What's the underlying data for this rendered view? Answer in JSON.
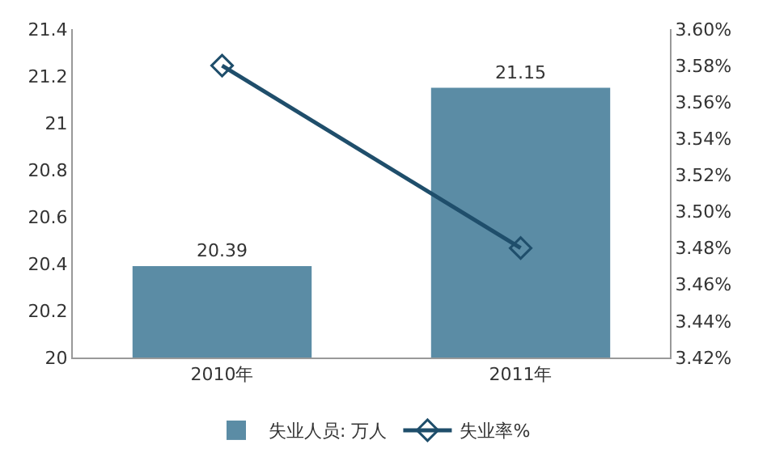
{
  "chart_data": {
    "type": "bar",
    "categories": [
      "2010年",
      "2011年"
    ],
    "series": [
      {
        "name": "失业人员: 万人",
        "color": "#5b8ca5",
        "values": [
          20.39,
          21.15
        ],
        "value_labels": [
          "20.39",
          "21.15"
        ]
      },
      {
        "name": "失业率%",
        "type": "line",
        "axis": "y2",
        "color": "#1f4e6b",
        "values": [
          3.58,
          3.48
        ],
        "marker": "diamond"
      }
    ],
    "ylim": [
      20,
      21.4
    ],
    "yticks": [
      20,
      20.2,
      20.4,
      20.6,
      20.8,
      21,
      21.2,
      21.4
    ],
    "y2lim": [
      3.42,
      3.6
    ],
    "y2ticks": [
      {
        "value": 3.42,
        "label": "3.42%"
      },
      {
        "value": 3.44,
        "label": "3.44%"
      },
      {
        "value": 3.46,
        "label": "3.46%"
      },
      {
        "value": 3.48,
        "label": "3.48%"
      },
      {
        "value": 3.5,
        "label": "3.50%"
      },
      {
        "value": 3.52,
        "label": "3.52%"
      },
      {
        "value": 3.54,
        "label": "3.54%"
      },
      {
        "value": 3.56,
        "label": "3.56%"
      },
      {
        "value": 3.58,
        "label": "3.58%"
      },
      {
        "value": 3.6,
        "label": "3.60%"
      }
    ],
    "grid": false,
    "legend": "bottom"
  }
}
